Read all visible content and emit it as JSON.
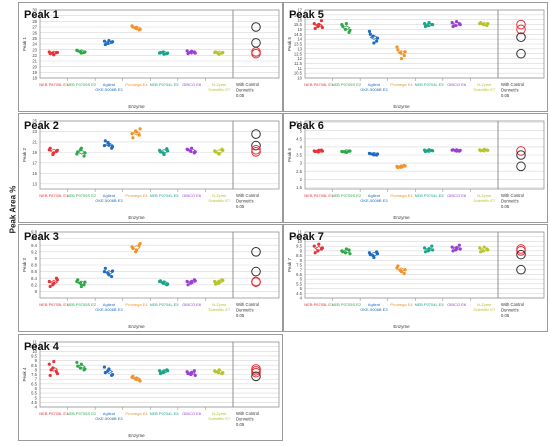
{
  "page": {
    "ylabel": "Peak Area %"
  },
  "chart_data": [
    {
      "type": "scatter",
      "title": "Peak 1",
      "ylabel": "Peak 1",
      "xlabel": "Enzyme",
      "ylim": [
        18,
        30
      ],
      "yticks": [
        18,
        19,
        20,
        21,
        22,
        23,
        24,
        25,
        26,
        27,
        28,
        29,
        30
      ],
      "categories": [
        "NEB P8705L E1",
        "NEB P0705S E2",
        "Agilent GKE-5006B E3",
        "Promega E4",
        "NEB P0704L E5",
        "GIBCO E6",
        "N-Zyme Scientific E7"
      ],
      "category_colors": [
        "#e8333a",
        "#2ea84a",
        "#1f6cc4",
        "#f0932b",
        "#18a58a",
        "#9b3fd1",
        "#b7c42a"
      ],
      "control_label": [
        "With Control",
        "Dunnett's",
        "0.05"
      ],
      "series": [
        {
          "name": "NEB P8705L E1",
          "values": [
            22.6,
            22.4,
            22.5,
            22.3,
            22.1,
            22.5
          ]
        },
        {
          "name": "NEB P0705S E2",
          "values": [
            22.9,
            22.6,
            22.5,
            22.8,
            22.4,
            22.6
          ]
        },
        {
          "name": "Agilent GKE-5006B E3",
          "values": [
            24.5,
            24.1,
            24.3,
            23.9,
            24.6,
            24.4
          ]
        },
        {
          "name": "Promega E4",
          "values": [
            27.2,
            26.8,
            26.5,
            27.0,
            26.9,
            26.6
          ]
        },
        {
          "name": "NEB P0704L E5",
          "values": [
            22.4,
            22.6,
            22.3,
            22.5,
            22.2,
            22.4
          ]
        },
        {
          "name": "GIBCO E6",
          "values": [
            22.8,
            22.5,
            22.6,
            22.3,
            22.7,
            22.4
          ]
        },
        {
          "name": "N-Zyme Scientific E7",
          "values": [
            22.5,
            22.3,
            22.4,
            22.6,
            22.2,
            22.5
          ]
        }
      ],
      "control_circles": [
        {
          "value": 27.0,
          "color": "#333333"
        },
        {
          "value": 24.2,
          "color": "#333333"
        },
        {
          "value": 22.6,
          "color": "#e8333a"
        },
        {
          "value": 22.3,
          "color": "#e8333a"
        }
      ]
    },
    {
      "type": "scatter",
      "title": "Peak 2",
      "ylabel": "Peak 2",
      "xlabel": "Enzyme",
      "ylim": [
        12,
        25
      ],
      "yticks": [
        13,
        15,
        17,
        19,
        21,
        23,
        25
      ],
      "categories": [
        "NEB P8705L E1",
        "NEB P0705S E2",
        "Agilent GKE-5006B E3",
        "Promega E4",
        "NEB P0704L E5",
        "GIBCO E6",
        "N-Zyme Scientific E7"
      ],
      "category_colors": [
        "#e8333a",
        "#2ea84a",
        "#1f6cc4",
        "#f0932b",
        "#18a58a",
        "#9b3fd1",
        "#b7c42a"
      ],
      "control_label": [
        "With Control",
        "Dunnett's",
        "0.05"
      ],
      "series": [
        {
          "name": "NEB P8705L E1",
          "values": [
            19.5,
            18.6,
            19.2,
            19.8,
            18.9,
            19.4
          ]
        },
        {
          "name": "NEB P0705S E2",
          "values": [
            18.7,
            19.5,
            18.3,
            19.1,
            19.8,
            18.9
          ]
        },
        {
          "name": "Agilent GKE-5006B E3",
          "values": [
            20.3,
            20.9,
            19.8,
            21.2,
            20.5,
            20.1
          ]
        },
        {
          "name": "Promega E4",
          "values": [
            22.6,
            23.1,
            22.3,
            21.8,
            22.9,
            23.5
          ]
        },
        {
          "name": "NEB P0704L E5",
          "values": [
            19.4,
            18.9,
            19.7,
            19.1,
            18.6,
            19.3
          ]
        },
        {
          "name": "GIBCO E6",
          "values": [
            19.6,
            19.2,
            18.9,
            19.5,
            19.8,
            19.1
          ]
        },
        {
          "name": "N-Zyme Scientific E7",
          "values": [
            19.3,
            18.8,
            19.6,
            19.1,
            18.7,
            19.4
          ]
        }
      ],
      "control_circles": [
        {
          "value": 22.5,
          "color": "#333333"
        },
        {
          "value": 20.3,
          "color": "#333333"
        },
        {
          "value": 19.5,
          "color": "#e8333a"
        },
        {
          "value": 19.1,
          "color": "#e8333a"
        }
      ]
    },
    {
      "type": "scatter",
      "title": "Peak 3",
      "ylabel": "Peak 3",
      "xlabel": "Enzyme",
      "ylim": [
        7.8,
        9.8
      ],
      "yticks": [
        8,
        8.2,
        8.4,
        8.6,
        8.8,
        9,
        9.2,
        9.4,
        9.6,
        9.8
      ],
      "categories": [
        "NEB P8705L E1",
        "NEB P0705S E2",
        "Agilent GKE-5006B E3",
        "Promega E4",
        "NEB P0704L E5",
        "GIBCO E6",
        "N-Zyme Scientific E7"
      ],
      "category_colors": [
        "#e8333a",
        "#2ea84a",
        "#1f6cc4",
        "#f0932b",
        "#18a58a",
        "#9b3fd1",
        "#b7c42a"
      ],
      "control_label": [
        "With Control",
        "Dunnett's",
        "0.05"
      ],
      "series": [
        {
          "name": "NEB P8705L E1",
          "values": [
            8.3,
            8.2,
            8.4,
            8.15,
            8.25,
            8.35
          ]
        },
        {
          "name": "NEB P0705S E2",
          "values": [
            8.3,
            8.25,
            8.2,
            8.35,
            8.15,
            8.28
          ]
        },
        {
          "name": "Agilent GKE-5006B E3",
          "values": [
            8.6,
            8.55,
            8.45,
            8.7,
            8.5,
            8.62
          ]
        },
        {
          "name": "Promega E4",
          "values": [
            9.35,
            9.2,
            9.4,
            9.3,
            9.25,
            9.45
          ]
        },
        {
          "name": "NEB P0704L E5",
          "values": [
            8.3,
            8.25,
            8.2,
            8.32,
            8.28,
            8.22
          ]
        },
        {
          "name": "GIBCO E6",
          "values": [
            8.3,
            8.25,
            8.35,
            8.2,
            8.28,
            8.32
          ]
        },
        {
          "name": "N-Zyme Scientific E7",
          "values": [
            8.3,
            8.25,
            8.35,
            8.22,
            8.28,
            8.33
          ]
        }
      ],
      "control_circles": [
        {
          "value": 9.2,
          "color": "#333333"
        },
        {
          "value": 8.6,
          "color": "#333333"
        },
        {
          "value": 8.3,
          "color": "#e8333a"
        },
        {
          "value": 8.28,
          "color": "#e8333a"
        }
      ]
    },
    {
      "type": "scatter",
      "title": "Peak 4",
      "ylabel": "Peak 4",
      "xlabel": "Enzyme",
      "ylim": [
        4,
        11
      ],
      "yticks": [
        4,
        4.5,
        5,
        5.5,
        6,
        6.5,
        7,
        7.5,
        8,
        8.5,
        9,
        9.5,
        10,
        10.5,
        11
      ],
      "categories": [
        "NEB P8705L E1",
        "NEB P0705S E2",
        "Agilent GKE-5006B E3",
        "Promega E4",
        "NEB P0704L E5",
        "GIBCO E6",
        "N-Zyme Scientific E7"
      ],
      "category_colors": [
        "#e8333a",
        "#2ea84a",
        "#1f6cc4",
        "#f0932b",
        "#18a58a",
        "#9b3fd1",
        "#b7c42a"
      ],
      "control_label": [
        "With Control",
        "Dunnett's",
        "0.05"
      ],
      "series": [
        {
          "name": "NEB P8705L E1",
          "values": [
            8.6,
            8.2,
            7.8,
            7.4,
            8.9,
            7.6,
            8.0
          ]
        },
        {
          "name": "NEB P0705S E2",
          "values": [
            8.8,
            8.2,
            8.0,
            8.4,
            8.6,
            8.1
          ]
        },
        {
          "name": "Agilent GKE-5006B E3",
          "values": [
            8.3,
            7.9,
            7.4,
            7.7,
            8.1,
            7.5
          ]
        },
        {
          "name": "Promega E4",
          "values": [
            7.2,
            7.0,
            6.9,
            7.3,
            7.1,
            6.8
          ]
        },
        {
          "name": "NEB P0704L E5",
          "values": [
            7.9,
            7.7,
            8.0,
            7.6,
            7.8,
            7.9
          ]
        },
        {
          "name": "GIBCO E6",
          "values": [
            7.8,
            7.5,
            7.9,
            7.6,
            7.7,
            7.4
          ]
        },
        {
          "name": "N-Zyme Scientific E7",
          "values": [
            7.9,
            7.7,
            7.6,
            7.8,
            8.0,
            7.7
          ]
        }
      ],
      "control_circles": [
        {
          "value": 8.1,
          "color": "#e8333a"
        },
        {
          "value": 7.9,
          "color": "#e8333a"
        },
        {
          "value": 7.7,
          "color": "#e8333a"
        },
        {
          "value": 7.3,
          "color": "#333333"
        }
      ]
    },
    {
      "type": "scatter",
      "title": "Peak 5",
      "ylabel": "Peak 5",
      "xlabel": "Enzyme",
      "ylim": [
        10,
        17
      ],
      "yticks": [
        10,
        10.5,
        11,
        11.5,
        12,
        12.5,
        13,
        13.5,
        14,
        14.5,
        15,
        15.5,
        16,
        16.5,
        17
      ],
      "categories": [
        "NEB P8705L E1",
        "NEB P0705S E2",
        "Agilent GKE-5006B E3",
        "Promega E4",
        "NEB P0704L E5",
        "GIBCO E6",
        "N-Zyme Scientific E7"
      ],
      "category_colors": [
        "#e8333a",
        "#2ea84a",
        "#1f6cc4",
        "#f0932b",
        "#18a58a",
        "#9b3fd1",
        "#b7c42a"
      ],
      "control_label": [
        "With Control",
        "Dunnett's",
        "0.05"
      ],
      "series": [
        {
          "name": "NEB P8705L E1",
          "values": [
            15.6,
            15.3,
            15.9,
            15.1,
            15.5,
            15.2
          ]
        },
        {
          "name": "NEB P0705S E2",
          "values": [
            15.5,
            15.0,
            14.7,
            15.3,
            15.6,
            14.9
          ]
        },
        {
          "name": "Agilent GKE-5006B E3",
          "values": [
            14.8,
            14.3,
            13.8,
            14.5,
            13.6,
            14.1
          ]
        },
        {
          "name": "Promega E4",
          "values": [
            13.2,
            12.6,
            12.3,
            12.9,
            12.0,
            12.7
          ]
        },
        {
          "name": "NEB P0704L E5",
          "values": [
            15.6,
            15.4,
            15.5,
            15.3,
            15.7,
            15.5
          ]
        },
        {
          "name": "GIBCO E6",
          "values": [
            15.7,
            15.4,
            15.6,
            15.3,
            15.8,
            15.5
          ]
        },
        {
          "name": "N-Zyme Scientific E7",
          "values": [
            15.6,
            15.5,
            15.4,
            15.7,
            15.5,
            15.6
          ]
        }
      ],
      "control_circles": [
        {
          "value": 15.5,
          "color": "#e8333a"
        },
        {
          "value": 15.0,
          "color": "#e8333a"
        },
        {
          "value": 14.2,
          "color": "#333333"
        },
        {
          "value": 12.5,
          "color": "#333333"
        }
      ]
    },
    {
      "type": "scatter",
      "title": "Peak 6",
      "ylabel": "Peak 6",
      "xlabel": "Enzyme",
      "ylim": [
        1.4,
        5.6
      ],
      "yticks": [
        1.5,
        2,
        2.5,
        3,
        3.5,
        4,
        4.5,
        5,
        5.5
      ],
      "categories": [
        "NEB P8705L E1",
        "NEB P0705S E2",
        "Agilent GKE-5006B E3",
        "Promega E4",
        "NEB P0704L E5",
        "GIBCO E6",
        "N-Zyme Scientific E7"
      ],
      "category_colors": [
        "#e8333a",
        "#2ea84a",
        "#1f6cc4",
        "#f0932b",
        "#18a58a",
        "#9b3fd1",
        "#b7c42a"
      ],
      "control_label": [
        "With Control",
        "Dunnett's",
        "0.05"
      ],
      "series": [
        {
          "name": "NEB P8705L E1",
          "values": [
            3.75,
            3.7,
            3.8,
            3.72,
            3.78,
            3.74
          ]
        },
        {
          "name": "NEB P0705S E2",
          "values": [
            3.72,
            3.68,
            3.75,
            3.7,
            3.66,
            3.74
          ]
        },
        {
          "name": "Agilent GKE-5006B E3",
          "values": [
            3.6,
            3.55,
            3.5,
            3.58,
            3.52,
            3.56
          ]
        },
        {
          "name": "Promega E4",
          "values": [
            2.8,
            2.75,
            2.85,
            2.72,
            2.78,
            2.82
          ]
        },
        {
          "name": "NEB P0704L E5",
          "values": [
            3.8,
            3.75,
            3.78,
            3.72,
            3.82,
            3.76
          ]
        },
        {
          "name": "GIBCO E6",
          "values": [
            3.8,
            3.76,
            3.74,
            3.82,
            3.78,
            3.79
          ]
        },
        {
          "name": "N-Zyme Scientific E7",
          "values": [
            3.82,
            3.78,
            3.8,
            3.76,
            3.84,
            3.79
          ]
        }
      ],
      "control_circles": [
        {
          "value": 3.75,
          "color": "#e8333a"
        },
        {
          "value": 3.5,
          "color": "#333333"
        },
        {
          "value": 2.8,
          "color": "#333333"
        }
      ]
    },
    {
      "type": "scatter",
      "title": "Peak 7",
      "ylabel": "Peak 7",
      "xlabel": "Enzyme",
      "ylim": [
        4,
        11
      ],
      "yticks": [
        4,
        4.5,
        5,
        5.5,
        6,
        6.5,
        7,
        7.5,
        8,
        8.5,
        9,
        9.5,
        10,
        10.5,
        11
      ],
      "categories": [
        "NEB P8705L E1",
        "NEB P0705S E2",
        "Agilent GKE-5006B E3",
        "Promega E4",
        "NEB P0704L E5",
        "GIBCO E6",
        "N-Zyme Scientific E7"
      ],
      "category_colors": [
        "#e8333a",
        "#2ea84a",
        "#1f6cc4",
        "#f0932b",
        "#18a58a",
        "#9b3fd1",
        "#b7c42a"
      ],
      "control_label": [
        "With Control",
        "Dunnett's",
        "0.05"
      ],
      "series": [
        {
          "name": "NEB P8705L E1",
          "values": [
            9.5,
            9.0,
            9.2,
            8.8,
            9.7,
            9.3
          ]
        },
        {
          "name": "NEB P0705S E2",
          "values": [
            9.0,
            8.8,
            9.1,
            8.9,
            9.2,
            8.7
          ]
        },
        {
          "name": "Agilent GKE-5006B E3",
          "values": [
            8.8,
            8.5,
            8.9,
            8.6,
            8.3,
            8.7
          ]
        },
        {
          "name": "Promega E4",
          "values": [
            7.2,
            6.9,
            6.6,
            7.4,
            6.8,
            7.0
          ]
        },
        {
          "name": "NEB P0704L E5",
          "values": [
            9.3,
            9.0,
            9.5,
            8.9,
            9.2,
            9.1
          ]
        },
        {
          "name": "GIBCO E6",
          "values": [
            9.4,
            9.1,
            9.6,
            9.0,
            9.3,
            9.2
          ]
        },
        {
          "name": "N-Zyme Scientific E7",
          "values": [
            9.3,
            9.0,
            9.2,
            8.9,
            9.4,
            9.1
          ]
        }
      ],
      "control_circles": [
        {
          "value": 9.2,
          "color": "#e8333a"
        },
        {
          "value": 9.0,
          "color": "#e8333a"
        },
        {
          "value": 8.6,
          "color": "#333333"
        },
        {
          "value": 7.0,
          "color": "#333333"
        }
      ]
    }
  ]
}
